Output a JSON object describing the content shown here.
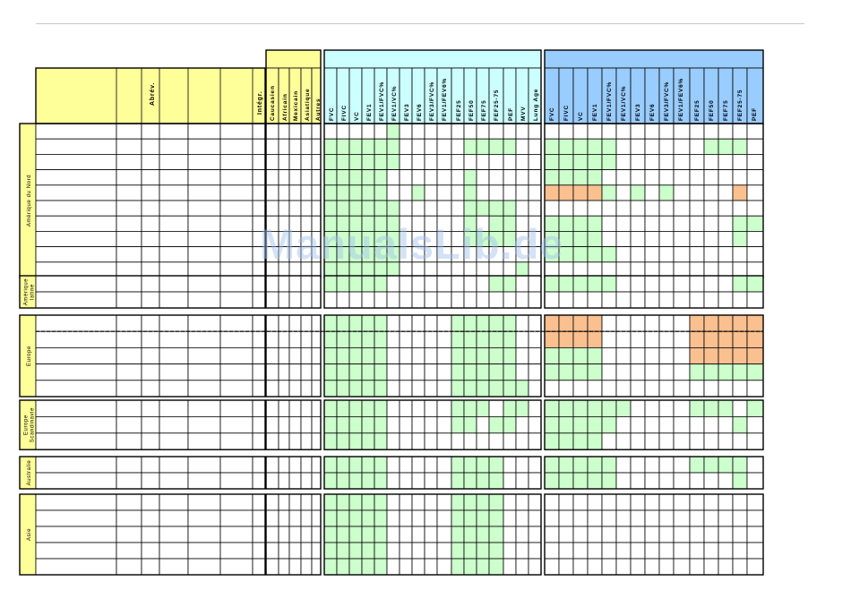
{
  "header": {
    "abbrev_label": "Abrév.",
    "integr_label": "Intégr.",
    "ethnicity_labels": [
      "Caucasien",
      "Africain",
      "Mexicain",
      "Asiatique",
      "Autres"
    ],
    "spirometry_params": [
      "FVC",
      "FIVC",
      "VC",
      "FEV1",
      "FEV1/FVC%",
      "FEV1/VC%",
      "FEV3",
      "FEV6",
      "FEV3/FVC%",
      "FEV1/FEV6%",
      "FEF25",
      "FEF50",
      "FEF75",
      "FEF25-75",
      "PEF",
      "MVV",
      "Lung Age"
    ],
    "second_params": [
      "FVC",
      "FIVC",
      "VC",
      "FEV1",
      "FEV1/FVC%",
      "FEV1/VC%",
      "FEV3",
      "FEV6",
      "FEV3/FVC%",
      "FEV1/FEV6%",
      "FEF25",
      "FEF50",
      "FEF75",
      "FEF25-75",
      "PEF"
    ]
  },
  "regions": [
    {
      "label": "Amérique du Nord",
      "rows": [
        {
          "g": [
            0,
            0,
            0,
            0,
            0,
            1,
            0,
            0,
            0,
            0,
            0,
            0,
            0,
            0,
            0,
            0,
            0
          ],
          "b": [
            0,
            0,
            0,
            0,
            0,
            0,
            0,
            0,
            0,
            0,
            0,
            0,
            0,
            0,
            0
          ]
        },
        {
          "g": [
            1,
            1,
            1,
            1,
            1,
            1,
            0,
            0,
            0,
            0,
            0,
            1,
            1,
            1,
            1,
            0,
            0
          ],
          "b": [
            1,
            1,
            1,
            1,
            1,
            0,
            0,
            0,
            0,
            0,
            0,
            1,
            1,
            1,
            0
          ]
        },
        {
          "g": [
            1,
            1,
            1,
            1,
            1,
            1,
            0,
            0,
            0,
            0,
            0,
            0,
            0,
            0,
            0,
            0,
            0
          ],
          "b": [
            1,
            1,
            1,
            1,
            1,
            0,
            0,
            0,
            0,
            0,
            0,
            0,
            0,
            0,
            0
          ]
        },
        {
          "g": [
            1,
            1,
            1,
            1,
            1,
            0,
            0,
            0,
            0,
            0,
            0,
            1,
            0,
            0,
            0,
            0,
            0
          ],
          "b": [
            1,
            1,
            1,
            1,
            0,
            0,
            0,
            0,
            0,
            0,
            0,
            0,
            0,
            0,
            0
          ]
        },
        {
          "g": [
            1,
            1,
            1,
            1,
            1,
            0,
            0,
            1,
            0,
            0,
            0,
            1,
            0,
            0,
            0,
            0,
            0
          ],
          "b": [
            1,
            1,
            1,
            1,
            1,
            0,
            1,
            0,
            1,
            0,
            0,
            0,
            0,
            1,
            0
          ]
        },
        {
          "g": [
            1,
            1,
            1,
            1,
            1,
            1,
            0,
            0,
            0,
            0,
            0,
            1,
            1,
            1,
            1,
            0,
            0
          ],
          "b": [
            0,
            0,
            0,
            0,
            0,
            0,
            0,
            0,
            0,
            0,
            0,
            0,
            0,
            0,
            0
          ]
        },
        {
          "g": [
            1,
            1,
            1,
            1,
            1,
            1,
            0,
            0,
            0,
            0,
            0,
            1,
            0,
            1,
            1,
            0,
            0
          ],
          "b": [
            1,
            1,
            1,
            1,
            0,
            0,
            0,
            0,
            0,
            0,
            0,
            0,
            0,
            1,
            1
          ]
        },
        {
          "g": [
            1,
            1,
            1,
            1,
            1,
            1,
            0,
            0,
            0,
            0,
            0,
            1,
            1,
            1,
            1,
            0,
            0
          ],
          "b": [
            1,
            1,
            1,
            1,
            0,
            0,
            0,
            0,
            0,
            0,
            0,
            0,
            0,
            1,
            0
          ]
        },
        {
          "g": [
            1,
            1,
            1,
            1,
            1,
            1,
            0,
            0,
            0,
            0,
            0,
            0,
            0,
            0,
            0,
            0,
            0
          ],
          "b": [
            1,
            1,
            1,
            1,
            1,
            0,
            0,
            0,
            0,
            0,
            0,
            0,
            0,
            0,
            0
          ]
        },
        {
          "g": [
            1,
            1,
            1,
            1,
            1,
            1,
            0,
            0,
            0,
            0,
            0,
            0,
            0,
            0,
            0,
            1,
            0
          ],
          "b": [
            0,
            0,
            0,
            0,
            0,
            0,
            0,
            0,
            0,
            0,
            0,
            0,
            0,
            0,
            0
          ]
        }
      ],
      "orange": {
        "4": [
          0,
          1,
          2,
          3,
          13
        ]
      }
    },
    {
      "label": "Amérique latine",
      "rows": [
        {
          "g": [
            1,
            1,
            1,
            1,
            1,
            0,
            0,
            0,
            0,
            0,
            0,
            0,
            0,
            1,
            1,
            0,
            0
          ],
          "b": [
            1,
            1,
            1,
            1,
            1,
            0,
            0,
            0,
            0,
            0,
            0,
            0,
            0,
            1,
            1
          ]
        },
        {
          "g": [
            0,
            0,
            0,
            0,
            0,
            0,
            0,
            0,
            0,
            0,
            0,
            0,
            0,
            0,
            0,
            0,
            0
          ],
          "b": [
            0,
            0,
            0,
            0,
            0,
            0,
            0,
            0,
            0,
            0,
            0,
            0,
            0,
            0,
            0
          ]
        }
      ]
    },
    {
      "label": "Europe",
      "rows": [
        {
          "g": [
            1,
            1,
            1,
            1,
            1,
            0,
            0,
            0,
            0,
            0,
            1,
            1,
            1,
            1,
            1,
            0,
            0
          ],
          "b": [
            0,
            0,
            0,
            0,
            0,
            0,
            0,
            0,
            0,
            0,
            0,
            0,
            0,
            0,
            0
          ]
        },
        {
          "g": [
            1,
            1,
            1,
            1,
            1,
            0,
            0,
            0,
            0,
            0,
            1,
            1,
            1,
            1,
            1,
            0,
            0
          ],
          "b": [
            0,
            0,
            0,
            0,
            0,
            0,
            0,
            0,
            0,
            0,
            0,
            0,
            0,
            0,
            0
          ]
        },
        {
          "g": [
            1,
            1,
            1,
            1,
            1,
            0,
            0,
            0,
            0,
            0,
            1,
            1,
            1,
            1,
            1,
            0,
            0
          ],
          "b": [
            1,
            1,
            1,
            1,
            0,
            0,
            0,
            0,
            0,
            0,
            0,
            0,
            0,
            0,
            0
          ]
        },
        {
          "g": [
            1,
            1,
            1,
            1,
            1,
            0,
            0,
            0,
            0,
            0,
            1,
            1,
            1,
            1,
            1,
            0,
            0
          ],
          "b": [
            1,
            1,
            1,
            1,
            0,
            0,
            0,
            0,
            0,
            0,
            1,
            1,
            1,
            1,
            1
          ]
        },
        {
          "g": [
            1,
            1,
            1,
            1,
            1,
            0,
            0,
            0,
            0,
            0,
            1,
            1,
            1,
            1,
            1,
            1,
            0
          ],
          "b": [
            0,
            0,
            0,
            0,
            0,
            0,
            0,
            0,
            0,
            0,
            0,
            0,
            0,
            0,
            0
          ]
        }
      ],
      "orange": {
        "0": [
          0,
          1,
          2,
          3,
          10,
          11,
          12,
          13,
          14
        ],
        "1": [
          0,
          1,
          2,
          3,
          10,
          11,
          12,
          13,
          14
        ],
        "2": [
          10,
          11,
          12,
          13,
          14
        ]
      },
      "dashed_after_row": 0
    },
    {
      "label": "Europe Scandinavie",
      "rows": [
        {
          "g": [
            1,
            1,
            1,
            1,
            1,
            0,
            0,
            0,
            0,
            0,
            1,
            1,
            1,
            0,
            1,
            1,
            0
          ],
          "b": [
            1,
            1,
            1,
            1,
            1,
            1,
            0,
            0,
            0,
            0,
            1,
            1,
            1,
            0,
            1
          ]
        },
        {
          "g": [
            1,
            1,
            1,
            1,
            1,
            0,
            0,
            0,
            0,
            0,
            1,
            1,
            0,
            1,
            1,
            0,
            0
          ],
          "b": [
            1,
            1,
            1,
            1,
            1,
            0,
            0,
            0,
            0,
            0,
            0,
            0,
            0,
            1,
            0
          ]
        },
        {
          "g": [
            1,
            1,
            1,
            1,
            1,
            0,
            0,
            0,
            0,
            0,
            0,
            0,
            0,
            0,
            0,
            0,
            0
          ],
          "b": [
            1,
            1,
            1,
            1,
            0,
            0,
            0,
            0,
            0,
            0,
            0,
            0,
            0,
            0,
            0
          ]
        }
      ]
    },
    {
      "label": "Australie",
      "rows": [
        {
          "g": [
            1,
            1,
            1,
            1,
            1,
            0,
            0,
            0,
            0,
            0,
            1,
            1,
            1,
            1,
            0,
            0,
            0
          ],
          "b": [
            1,
            1,
            1,
            1,
            1,
            0,
            0,
            0,
            0,
            0,
            1,
            1,
            1,
            1,
            0
          ]
        },
        {
          "g": [
            1,
            1,
            1,
            1,
            1,
            0,
            0,
            0,
            0,
            0,
            1,
            1,
            1,
            1,
            0,
            0,
            0
          ],
          "b": [
            1,
            1,
            1,
            1,
            1,
            0,
            0,
            0,
            0,
            0,
            0,
            0,
            0,
            1,
            0
          ]
        }
      ]
    },
    {
      "label": "Asie",
      "rows": [
        {
          "g": [
            1,
            1,
            1,
            1,
            1,
            0,
            0,
            0,
            0,
            0,
            1,
            1,
            1,
            1,
            0,
            0,
            0
          ],
          "b": [
            0,
            0,
            0,
            0,
            0,
            0,
            0,
            0,
            0,
            0,
            0,
            0,
            0,
            0,
            0
          ]
        },
        {
          "g": [
            1,
            1,
            1,
            1,
            1,
            0,
            0,
            0,
            0,
            0,
            1,
            1,
            1,
            1,
            0,
            0,
            0
          ],
          "b": [
            0,
            0,
            0,
            0,
            0,
            0,
            0,
            0,
            0,
            0,
            0,
            0,
            0,
            0,
            0
          ]
        },
        {
          "g": [
            1,
            1,
            1,
            1,
            1,
            0,
            0,
            0,
            0,
            0,
            1,
            1,
            1,
            1,
            0,
            0,
            0
          ],
          "b": [
            0,
            0,
            0,
            0,
            0,
            0,
            0,
            0,
            0,
            0,
            0,
            0,
            0,
            0,
            0
          ]
        },
        {
          "g": [
            1,
            1,
            1,
            1,
            1,
            0,
            0,
            0,
            0,
            0,
            1,
            1,
            1,
            1,
            0,
            0,
            0
          ],
          "b": [
            0,
            0,
            0,
            0,
            0,
            0,
            0,
            0,
            0,
            0,
            0,
            0,
            0,
            0,
            0
          ]
        },
        {
          "g": [
            1,
            1,
            1,
            1,
            1,
            0,
            0,
            0,
            0,
            0,
            1,
            1,
            1,
            1,
            0,
            0,
            0
          ],
          "b": [
            0,
            0,
            0,
            0,
            0,
            0,
            0,
            0,
            0,
            0,
            0,
            0,
            0,
            0,
            0
          ]
        }
      ]
    }
  ],
  "watermark": "ManualsLib.de",
  "colors": {
    "yellow": "#ffff99",
    "cyan": "#ccffff",
    "blue": "#99ccff",
    "green": "#ccffcc",
    "orange": "#fac090",
    "grid": "#000000"
  }
}
